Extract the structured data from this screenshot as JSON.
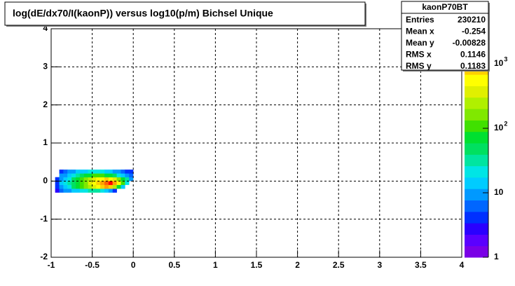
{
  "chart_data": {
    "type": "heatmap",
    "title": "log(dE/dx70/I(kaonP)) versus log10(p/m) Bichsel Unique",
    "xbins": [
      -0.95,
      -0.9,
      -0.85,
      -0.8,
      -0.75,
      -0.7,
      -0.65,
      -0.6,
      -0.55,
      -0.5,
      -0.45,
      -0.4,
      -0.35,
      -0.3,
      -0.25,
      -0.2,
      -0.15,
      -0.1,
      -0.05,
      0
    ],
    "ybins": [
      -0.3,
      -0.2,
      -0.1,
      0,
      0.1,
      0.2,
      0.3
    ],
    "z": [
      [
        3,
        6,
        8,
        10,
        12,
        15,
        20,
        25,
        30,
        35,
        30,
        25,
        15,
        8,
        4,
        null,
        null,
        null,
        null
      ],
      [
        4,
        10,
        15,
        25,
        40,
        60,
        100,
        150,
        250,
        400,
        600,
        900,
        1200,
        800,
        300,
        80,
        15,
        null,
        null
      ],
      [
        5,
        12,
        20,
        30,
        50,
        80,
        120,
        200,
        350,
        500,
        800,
        1200,
        2000,
        2500,
        1500,
        500,
        100,
        20,
        null
      ],
      [
        4,
        10,
        15,
        25,
        40,
        60,
        90,
        150,
        250,
        350,
        500,
        600,
        700,
        600,
        400,
        200,
        80,
        30,
        10
      ],
      [
        null,
        8,
        10,
        15,
        20,
        30,
        40,
        60,
        80,
        100,
        120,
        100,
        80,
        60,
        40,
        25,
        15,
        10,
        6
      ],
      [
        null,
        5,
        6,
        8,
        10,
        12,
        14,
        15,
        18,
        20,
        20,
        18,
        15,
        12,
        10,
        8,
        6,
        5,
        4
      ]
    ],
    "xlim": [
      -1,
      4
    ],
    "ylim": [
      -2,
      4
    ],
    "zlim": [
      1,
      3500
    ],
    "zlog": true,
    "xticks": [
      -1,
      -0.5,
      0,
      0.5,
      1,
      1.5,
      2,
      2.5,
      3,
      3.5,
      4
    ],
    "yticks": [
      -2,
      -1,
      0,
      1,
      2,
      3,
      4
    ],
    "zticks": [
      1,
      10,
      {
        "value": 100,
        "label": "10",
        "exponent": "2"
      },
      {
        "value": 1000,
        "label": "10",
        "exponent": "3"
      }
    ],
    "grid": true,
    "palette": [
      "#7a00e6",
      "#5a00ff",
      "#2a00ff",
      "#0030ff",
      "#0066ff",
      "#0099ff",
      "#00ccff",
      "#00e5e5",
      "#00e5a0",
      "#00e060",
      "#00e030",
      "#40e000",
      "#80e800",
      "#b0f000",
      "#e0f000",
      "#ffff00",
      "#ffd000",
      "#ffa000",
      "#ff6000",
      "#ff0000"
    ],
    "stats": {
      "title": "kaonP70BT",
      "rows": [
        [
          "Entries",
          "230210"
        ],
        [
          "Mean x",
          "-0.254"
        ],
        [
          "Mean y",
          "-0.00828"
        ],
        [
          "RMS x",
          "0.1146"
        ],
        [
          "RMS y",
          "0.1183"
        ]
      ]
    }
  }
}
